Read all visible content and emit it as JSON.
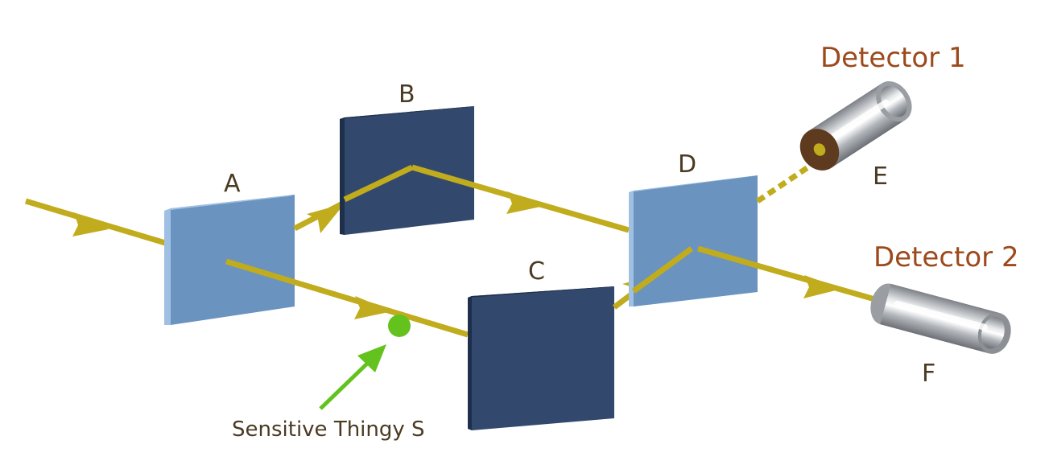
{
  "labels": {
    "a": "A",
    "b": "B",
    "c": "C",
    "d": "D",
    "e": "E",
    "f": "F",
    "detector1": "Detector 1",
    "detector2": "Detector 2",
    "sensitive": "Sensitive Thingy S"
  },
  "colors": {
    "beam": "#c0ac1c",
    "beam_splitter": "#6b93c0",
    "beam_splitter_edge": "#9fc0e2",
    "mirror": "#32496d",
    "mirror_edge": "#1e2f4c",
    "sensitive_thing": "#63c21e",
    "detector_label": "#9c4a1c",
    "label": "#4a3a22",
    "detector_cap": "#5e3a1e"
  }
}
